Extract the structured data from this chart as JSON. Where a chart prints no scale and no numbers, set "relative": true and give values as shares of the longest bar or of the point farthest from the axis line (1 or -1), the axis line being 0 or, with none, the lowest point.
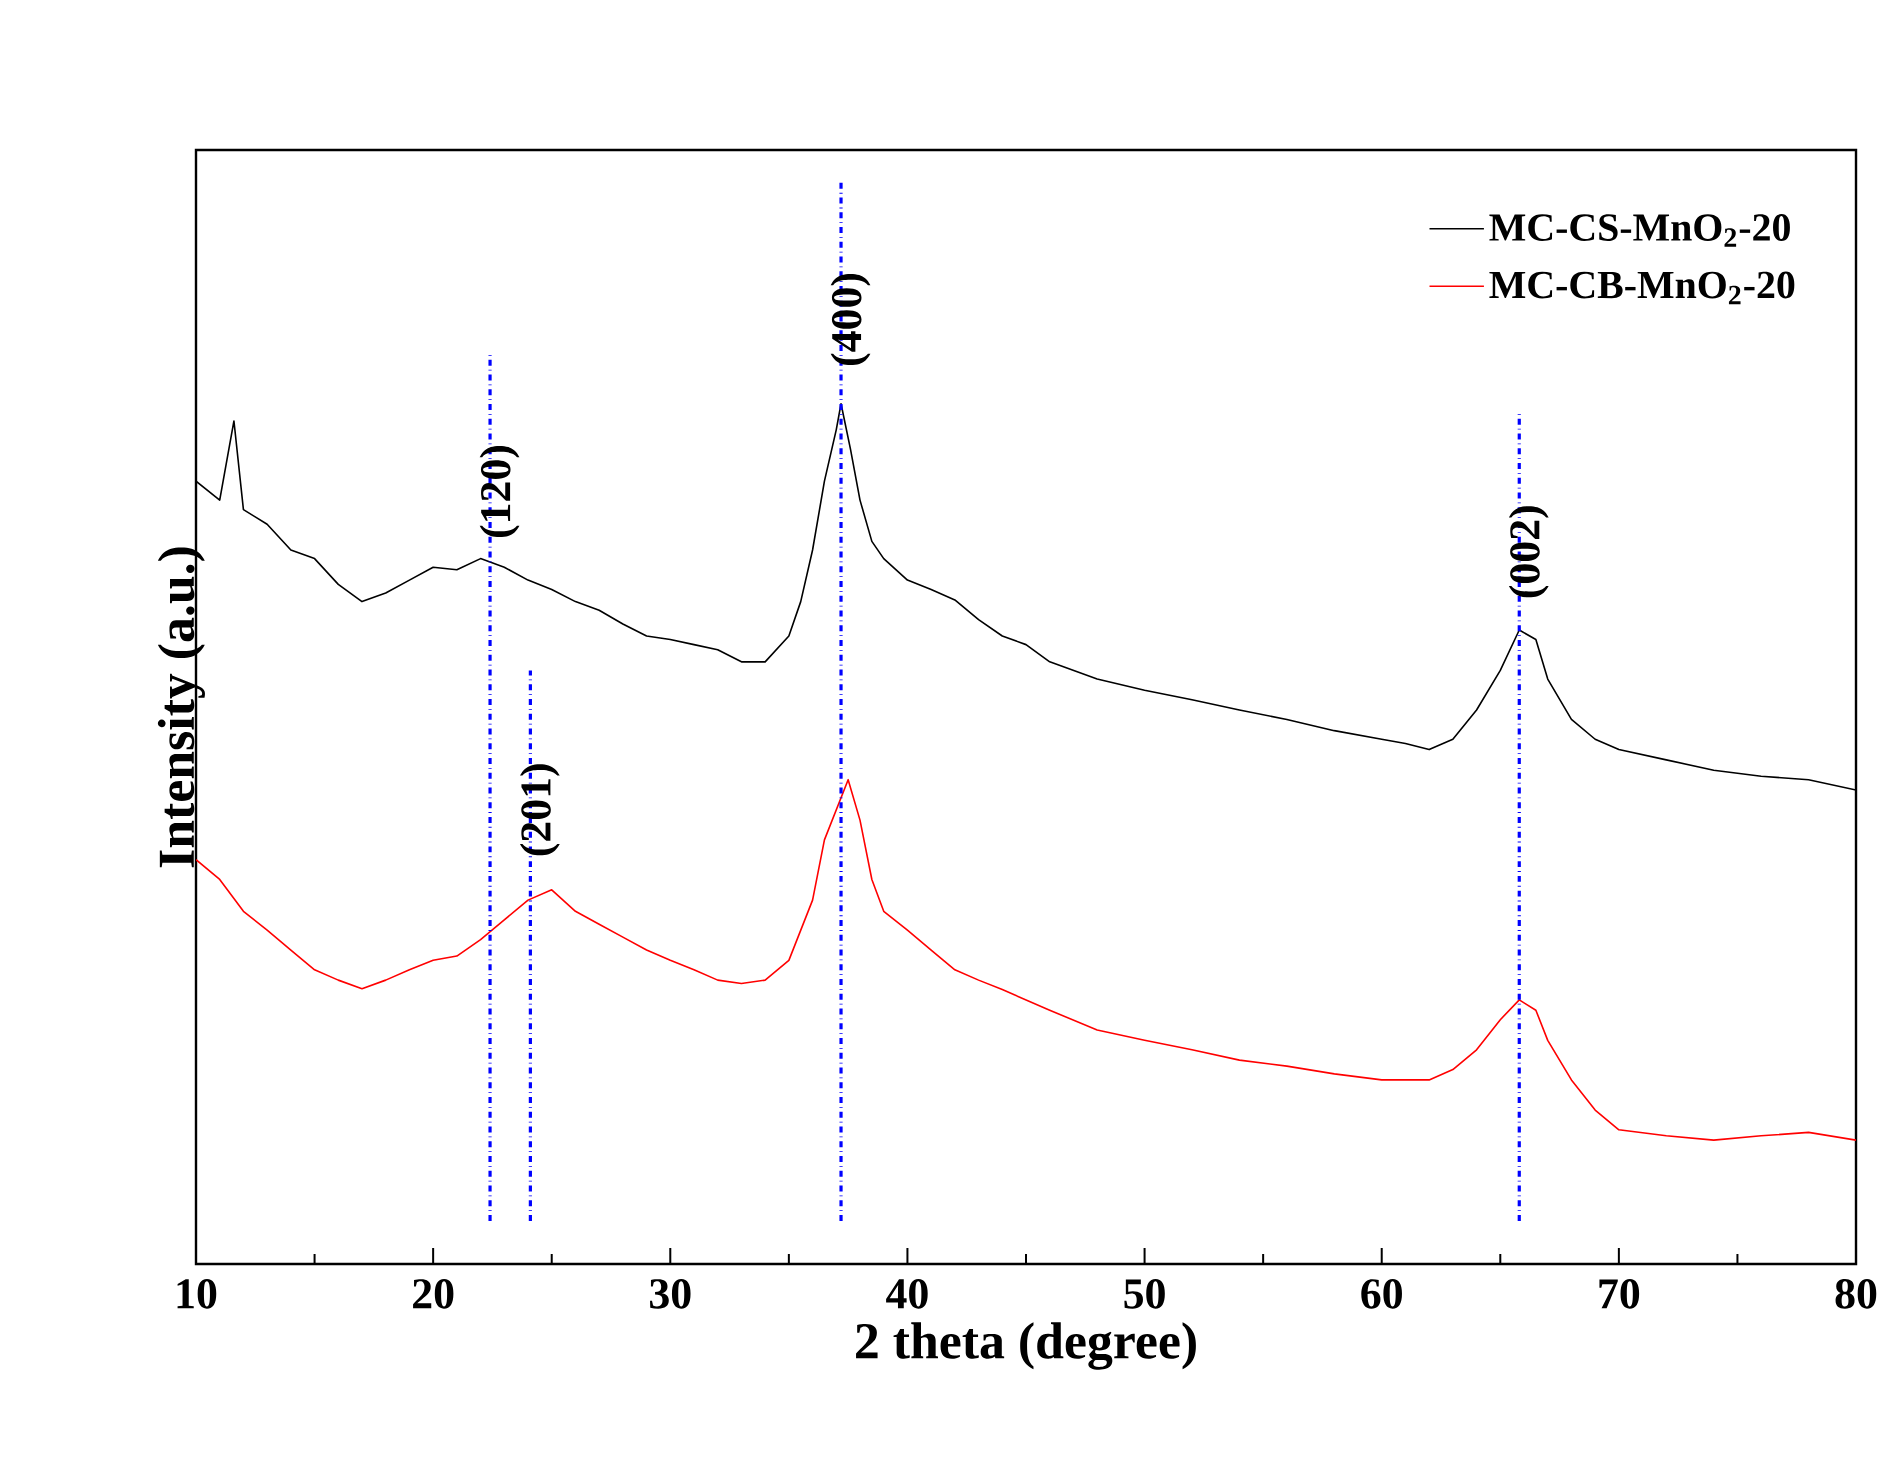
{
  "chart_data": {
    "type": "line",
    "xlabel": "2 theta (degree)",
    "ylabel": "Intensity (a.u.)",
    "relative": true,
    "xlim": [
      10,
      80
    ],
    "xticks": [
      10,
      20,
      30,
      40,
      50,
      60,
      70,
      80
    ],
    "tick_labels": "x",
    "legend": "top right",
    "series": [
      {
        "name": "MC-CS-MnO$_{2}$-20",
        "color": "#000000",
        "x": [
          10,
          11,
          11.6,
          12,
          13,
          14,
          15,
          16,
          17,
          18,
          19,
          20,
          21,
          22,
          23,
          24,
          25,
          26,
          27,
          28,
          29,
          30,
          31,
          32,
          33,
          34,
          35,
          35.5,
          36,
          36.5,
          37,
          37.2,
          37.6,
          38,
          38.5,
          39,
          40,
          41,
          42,
          43,
          44,
          45,
          46,
          48,
          50,
          52,
          54,
          56,
          58,
          60,
          61,
          62,
          63,
          64,
          65,
          65.8,
          66.5,
          67,
          68,
          69,
          70,
          72,
          74,
          76,
          78,
          80
        ],
        "values": [
          0.91,
          0.888,
          0.98,
          0.877,
          0.86,
          0.83,
          0.82,
          0.79,
          0.77,
          0.78,
          0.795,
          0.81,
          0.807,
          0.82,
          0.81,
          0.795,
          0.784,
          0.77,
          0.76,
          0.744,
          0.73,
          0.726,
          0.72,
          0.714,
          0.7,
          0.7,
          0.73,
          0.77,
          0.83,
          0.91,
          0.97,
          1.0,
          0.947,
          0.888,
          0.84,
          0.82,
          0.795,
          0.784,
          0.772,
          0.749,
          0.73,
          0.72,
          0.7,
          0.68,
          0.667,
          0.656,
          0.644,
          0.633,
          0.62,
          0.61,
          0.605,
          0.598,
          0.61,
          0.644,
          0.69,
          0.737,
          0.726,
          0.68,
          0.633,
          0.61,
          0.598,
          0.586,
          0.574,
          0.567,
          0.563,
          0.551
        ]
      },
      {
        "name": "MC-CB-MnO$_{2}$-20",
        "color": "#ff0000",
        "x": [
          10,
          11,
          12,
          13,
          14,
          15,
          16,
          17,
          18,
          19,
          20,
          21,
          22,
          23,
          24,
          25,
          26,
          27,
          28,
          29,
          30,
          31,
          32,
          33,
          34,
          35,
          36,
          36.5,
          37,
          37.5,
          38,
          38.5,
          39,
          40,
          41,
          42,
          43,
          44,
          46,
          48,
          50,
          52,
          54,
          56,
          58,
          60,
          62,
          63,
          64,
          65,
          65.8,
          66.5,
          67,
          68,
          69,
          70,
          72,
          74,
          76,
          78,
          80
        ],
        "values": [
          0.47,
          0.447,
          0.41,
          0.388,
          0.365,
          0.342,
          0.33,
          0.32,
          0.33,
          0.342,
          0.353,
          0.358,
          0.377,
          0.4,
          0.423,
          0.435,
          0.41,
          0.395,
          0.38,
          0.365,
          0.353,
          0.342,
          0.33,
          0.326,
          0.33,
          0.353,
          0.423,
          0.493,
          0.528,
          0.563,
          0.516,
          0.447,
          0.41,
          0.388,
          0.365,
          0.342,
          0.33,
          0.319,
          0.295,
          0.272,
          0.26,
          0.249,
          0.237,
          0.23,
          0.221,
          0.214,
          0.214,
          0.226,
          0.249,
          0.284,
          0.307,
          0.295,
          0.26,
          0.214,
          0.179,
          0.156,
          0.149,
          0.144,
          0.149,
          0.153,
          0.144
        ]
      }
    ],
    "ref_lines": [
      {
        "axis": "x",
        "value": 22.4,
        "color": "#0000ff",
        "line_style": "dashed"
      },
      {
        "axis": "x",
        "value": 24.1,
        "color": "#0000ff",
        "line_style": "dashed"
      },
      {
        "axis": "x",
        "value": 37.2,
        "color": "#0000ff",
        "line_style": "dashed"
      },
      {
        "axis": "x",
        "value": 65.8,
        "color": "#0000ff",
        "line_style": "dashed"
      }
    ],
    "annotations": [
      {
        "text": "(120)",
        "x": 22.8,
        "y": 0.84
      },
      {
        "text": "(201)",
        "x": 24.5,
        "y": 0.47
      },
      {
        "text": "(400)",
        "x": 37.6,
        "y": 1.04
      },
      {
        "text": "(002)",
        "x": 66.2,
        "y": 0.77
      }
    ]
  }
}
